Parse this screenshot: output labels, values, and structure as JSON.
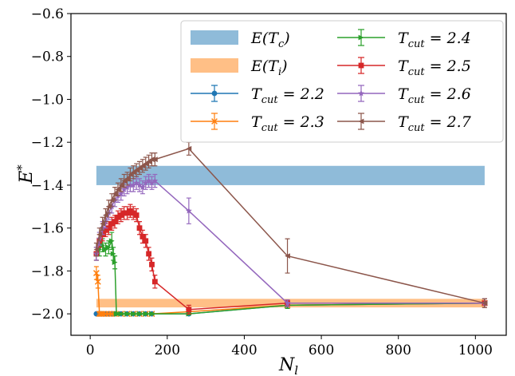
{
  "chart_data": {
    "type": "line",
    "xlabel": "N_l",
    "ylabel": "E^*",
    "xlim": [
      -50,
      1080
    ],
    "ylim": [
      -2.1,
      -0.6
    ],
    "x_ticks": [
      0,
      200,
      400,
      600,
      800,
      1000
    ],
    "y_ticks": [
      -2.0,
      -1.8,
      -1.6,
      -1.4,
      -1.2,
      -1.0,
      -0.8,
      -0.6
    ],
    "x_tick_labels": [
      "0",
      "200",
      "400",
      "600",
      "800",
      "1000"
    ],
    "y_tick_labels": [
      "−2.0",
      "−1.8",
      "−1.6",
      "−1.4",
      "−1.2",
      "−1.0",
      "−0.8",
      "−0.6"
    ],
    "grid": false,
    "legend_position": "top-right",
    "bands": [
      {
        "name": "E(T_c)",
        "label_main": "E(T",
        "label_sub": "c",
        "label_tail": ")",
        "x": [
          16,
          1024
        ],
        "y": [
          -1.4,
          -1.31
        ],
        "color": "#1f77b4",
        "alpha": 0.5
      },
      {
        "name": "E(T_i)",
        "label_main": "E(T",
        "label_sub": "i",
        "label_tail": ")",
        "x": [
          16,
          1024
        ],
        "y": [
          -1.97,
          -1.93
        ],
        "color": "#ff7f0e",
        "alpha": 0.5
      }
    ],
    "series": [
      {
        "name": "T_cut = 2.2",
        "label_main": "T",
        "label_sub": "cut",
        "label_value": "2.2",
        "color": "#1f77b4",
        "marker": "circle",
        "x": [
          16,
          20,
          24,
          28,
          32,
          40,
          48,
          56,
          64,
          80,
          96,
          112,
          128,
          144,
          160,
          256,
          512,
          1024
        ],
        "y": [
          -2.0,
          -2.0,
          -2.0,
          -2.0,
          -2.0,
          -2.0,
          -2.0,
          -2.0,
          -2.0,
          -2.0,
          -2.0,
          -2.0,
          -2.0,
          -2.0,
          -2.0,
          -2.0,
          -1.96,
          -1.95
        ],
        "err": [
          0.003,
          0.003,
          0.003,
          0.003,
          0.003,
          0.003,
          0.003,
          0.003,
          0.003,
          0.003,
          0.003,
          0.003,
          0.003,
          0.003,
          0.003,
          0.004,
          0.015,
          0.02
        ]
      },
      {
        "name": "T_cut = 2.3",
        "label_main": "T",
        "label_sub": "cut",
        "label_value": "2.3",
        "color": "#ff7f0e",
        "marker": "x",
        "x": [
          16,
          20,
          24,
          28,
          32,
          40,
          48,
          56,
          64,
          80,
          96,
          112,
          128,
          144,
          160,
          256,
          512,
          1024
        ],
        "y": [
          -1.81,
          -1.85,
          -2.0,
          -2.0,
          -2.0,
          -2.0,
          -2.0,
          -2.0,
          -2.0,
          -2.0,
          -2.0,
          -2.0,
          -2.0,
          -2.0,
          -2.0,
          -1.99,
          -1.96,
          -1.95
        ],
        "err": [
          0.03,
          0.03,
          0.004,
          0.004,
          0.004,
          0.004,
          0.004,
          0.004,
          0.004,
          0.004,
          0.004,
          0.004,
          0.004,
          0.004,
          0.004,
          0.005,
          0.015,
          0.02
        ]
      },
      {
        "name": "T_cut = 2.4",
        "label_main": "T",
        "label_sub": "cut",
        "label_value": "2.4",
        "color": "#2ca02c",
        "marker": "triangle-right",
        "x": [
          16,
          24,
          32,
          40,
          48,
          56,
          60,
          64,
          68,
          72,
          80,
          96,
          112,
          128,
          144,
          160,
          256,
          512,
          1024
        ],
        "y": [
          -1.72,
          -1.7,
          -1.68,
          -1.7,
          -1.69,
          -1.66,
          -1.72,
          -1.76,
          -2.0,
          -2.0,
          -2.0,
          -2.0,
          -2.0,
          -2.0,
          -2.0,
          -2.0,
          -2.0,
          -1.96,
          -1.95
        ],
        "err": [
          0.03,
          0.03,
          0.03,
          0.03,
          0.03,
          0.04,
          0.03,
          0.03,
          0.005,
          0.005,
          0.005,
          0.005,
          0.005,
          0.005,
          0.005,
          0.005,
          0.005,
          0.015,
          0.02
        ]
      },
      {
        "name": "T_cut = 2.5",
        "label_main": "T",
        "label_sub": "cut",
        "label_value": "2.5",
        "color": "#d62728",
        "marker": "square",
        "x": [
          16,
          24,
          32,
          40,
          48,
          56,
          64,
          72,
          80,
          88,
          96,
          104,
          112,
          120,
          128,
          136,
          144,
          152,
          160,
          168,
          256,
          512,
          1024
        ],
        "y": [
          -1.72,
          -1.66,
          -1.63,
          -1.61,
          -1.6,
          -1.58,
          -1.57,
          -1.55,
          -1.54,
          -1.53,
          -1.53,
          -1.52,
          -1.53,
          -1.54,
          -1.6,
          -1.64,
          -1.66,
          -1.72,
          -1.77,
          -1.85,
          -1.98,
          -1.95,
          -1.95
        ],
        "err": [
          0.03,
          0.03,
          0.03,
          0.03,
          0.03,
          0.03,
          0.03,
          0.03,
          0.03,
          0.03,
          0.03,
          0.03,
          0.03,
          0.03,
          0.03,
          0.03,
          0.03,
          0.03,
          0.03,
          0.03,
          0.02,
          0.015,
          0.02
        ]
      },
      {
        "name": "T_cut = 2.6",
        "label_main": "T",
        "label_sub": "cut",
        "label_value": "2.6",
        "color": "#9467bd",
        "marker": "star",
        "x": [
          16,
          24,
          32,
          40,
          48,
          56,
          64,
          72,
          80,
          88,
          96,
          104,
          112,
          120,
          128,
          136,
          144,
          152,
          160,
          168,
          256,
          512,
          1024
        ],
        "y": [
          -1.72,
          -1.65,
          -1.6,
          -1.57,
          -1.53,
          -1.5,
          -1.47,
          -1.45,
          -1.44,
          -1.42,
          -1.41,
          -1.4,
          -1.4,
          -1.39,
          -1.4,
          -1.41,
          -1.39,
          -1.38,
          -1.39,
          -1.38,
          -1.52,
          -1.95,
          -1.95
        ],
        "err": [
          0.03,
          0.03,
          0.03,
          0.03,
          0.03,
          0.03,
          0.03,
          0.03,
          0.03,
          0.03,
          0.03,
          0.03,
          0.03,
          0.03,
          0.03,
          0.03,
          0.03,
          0.03,
          0.03,
          0.03,
          0.06,
          0.015,
          0.02
        ]
      },
      {
        "name": "T_cut = 2.7",
        "label_main": "T",
        "label_sub": "cut",
        "label_value": "2.7",
        "color": "#8c564b",
        "marker": "triangle-left",
        "x": [
          16,
          24,
          32,
          40,
          48,
          56,
          64,
          72,
          80,
          88,
          96,
          104,
          112,
          120,
          128,
          136,
          144,
          152,
          160,
          168,
          256,
          512,
          1024
        ],
        "y": [
          -1.7,
          -1.63,
          -1.58,
          -1.54,
          -1.5,
          -1.47,
          -1.44,
          -1.42,
          -1.4,
          -1.38,
          -1.37,
          -1.35,
          -1.34,
          -1.33,
          -1.32,
          -1.31,
          -1.3,
          -1.29,
          -1.28,
          -1.28,
          -1.23,
          -1.73,
          -1.95
        ],
        "err": [
          0.03,
          0.03,
          0.03,
          0.03,
          0.03,
          0.03,
          0.03,
          0.03,
          0.03,
          0.03,
          0.03,
          0.03,
          0.03,
          0.03,
          0.03,
          0.03,
          0.03,
          0.03,
          0.03,
          0.03,
          0.03,
          0.08,
          0.02
        ]
      }
    ]
  }
}
